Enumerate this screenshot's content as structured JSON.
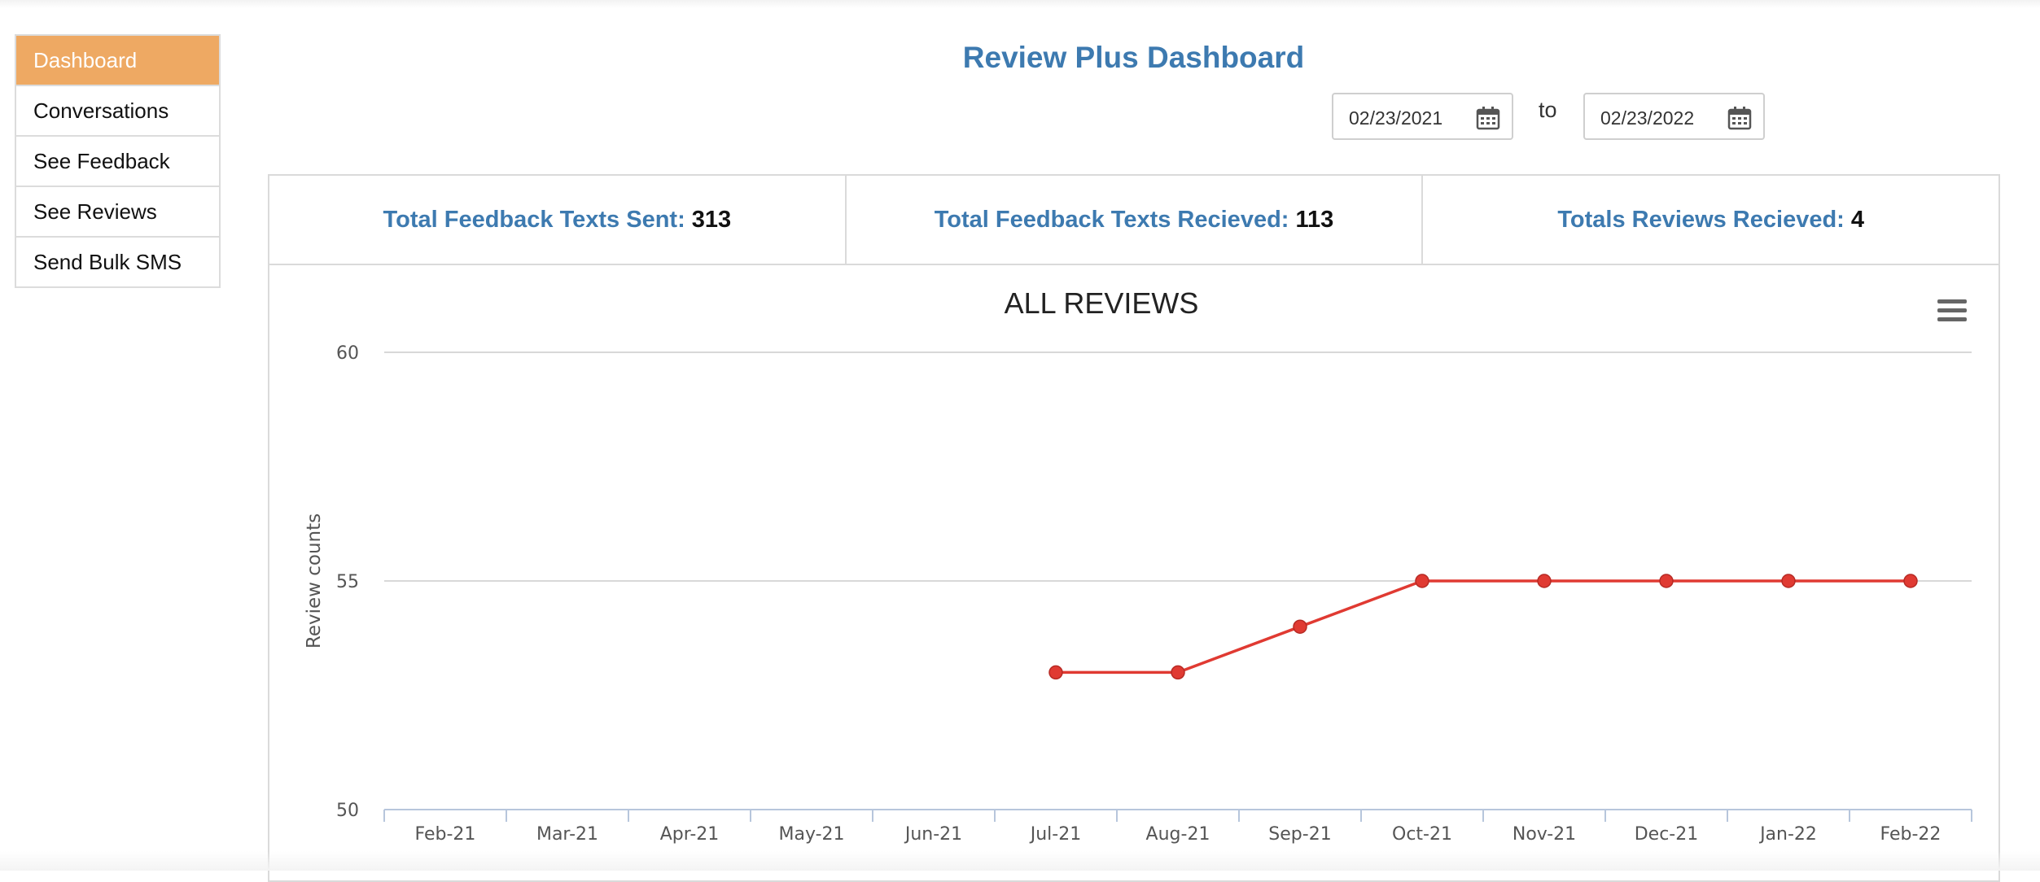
{
  "sidebar": {
    "items": [
      {
        "label": "Dashboard",
        "active": true
      },
      {
        "label": "Conversations",
        "active": false
      },
      {
        "label": "See Feedback",
        "active": false
      },
      {
        "label": "See Reviews",
        "active": false
      },
      {
        "label": "Send Bulk SMS",
        "active": false
      }
    ]
  },
  "header": {
    "title": "Review Plus Dashboard",
    "date_from": "02/23/2021",
    "date_to": "02/23/2022",
    "to_label": "to"
  },
  "stats": [
    {
      "label": "Total Feedback Texts Sent:",
      "value": "313"
    },
    {
      "label": "Total Feedback Texts Recieved:",
      "value": "113"
    },
    {
      "label": "Totals Reviews Recieved:",
      "value": "4"
    }
  ],
  "icons": {
    "calendar": "calendar-icon",
    "menu": "hamburger-menu-icon"
  },
  "colors": {
    "accent": "#eea963",
    "title": "#3d7ab0",
    "series": "#e03a32"
  },
  "chart_data": {
    "type": "line",
    "title": "ALL REVIEWS",
    "xlabel": "",
    "ylabel": "Review counts",
    "categories": [
      "Feb-21",
      "Mar-21",
      "Apr-21",
      "May-21",
      "Jun-21",
      "Jul-21",
      "Aug-21",
      "Sep-21",
      "Oct-21",
      "Nov-21",
      "Dec-21",
      "Jan-22",
      "Feb-22"
    ],
    "series": [
      {
        "values": [
          null,
          null,
          null,
          null,
          null,
          53,
          53,
          54,
          55,
          55,
          55,
          55,
          55
        ]
      }
    ],
    "yticks": [
      50,
      55,
      60
    ],
    "ylim": [
      50,
      60
    ],
    "grid": true,
    "legend": "none"
  }
}
